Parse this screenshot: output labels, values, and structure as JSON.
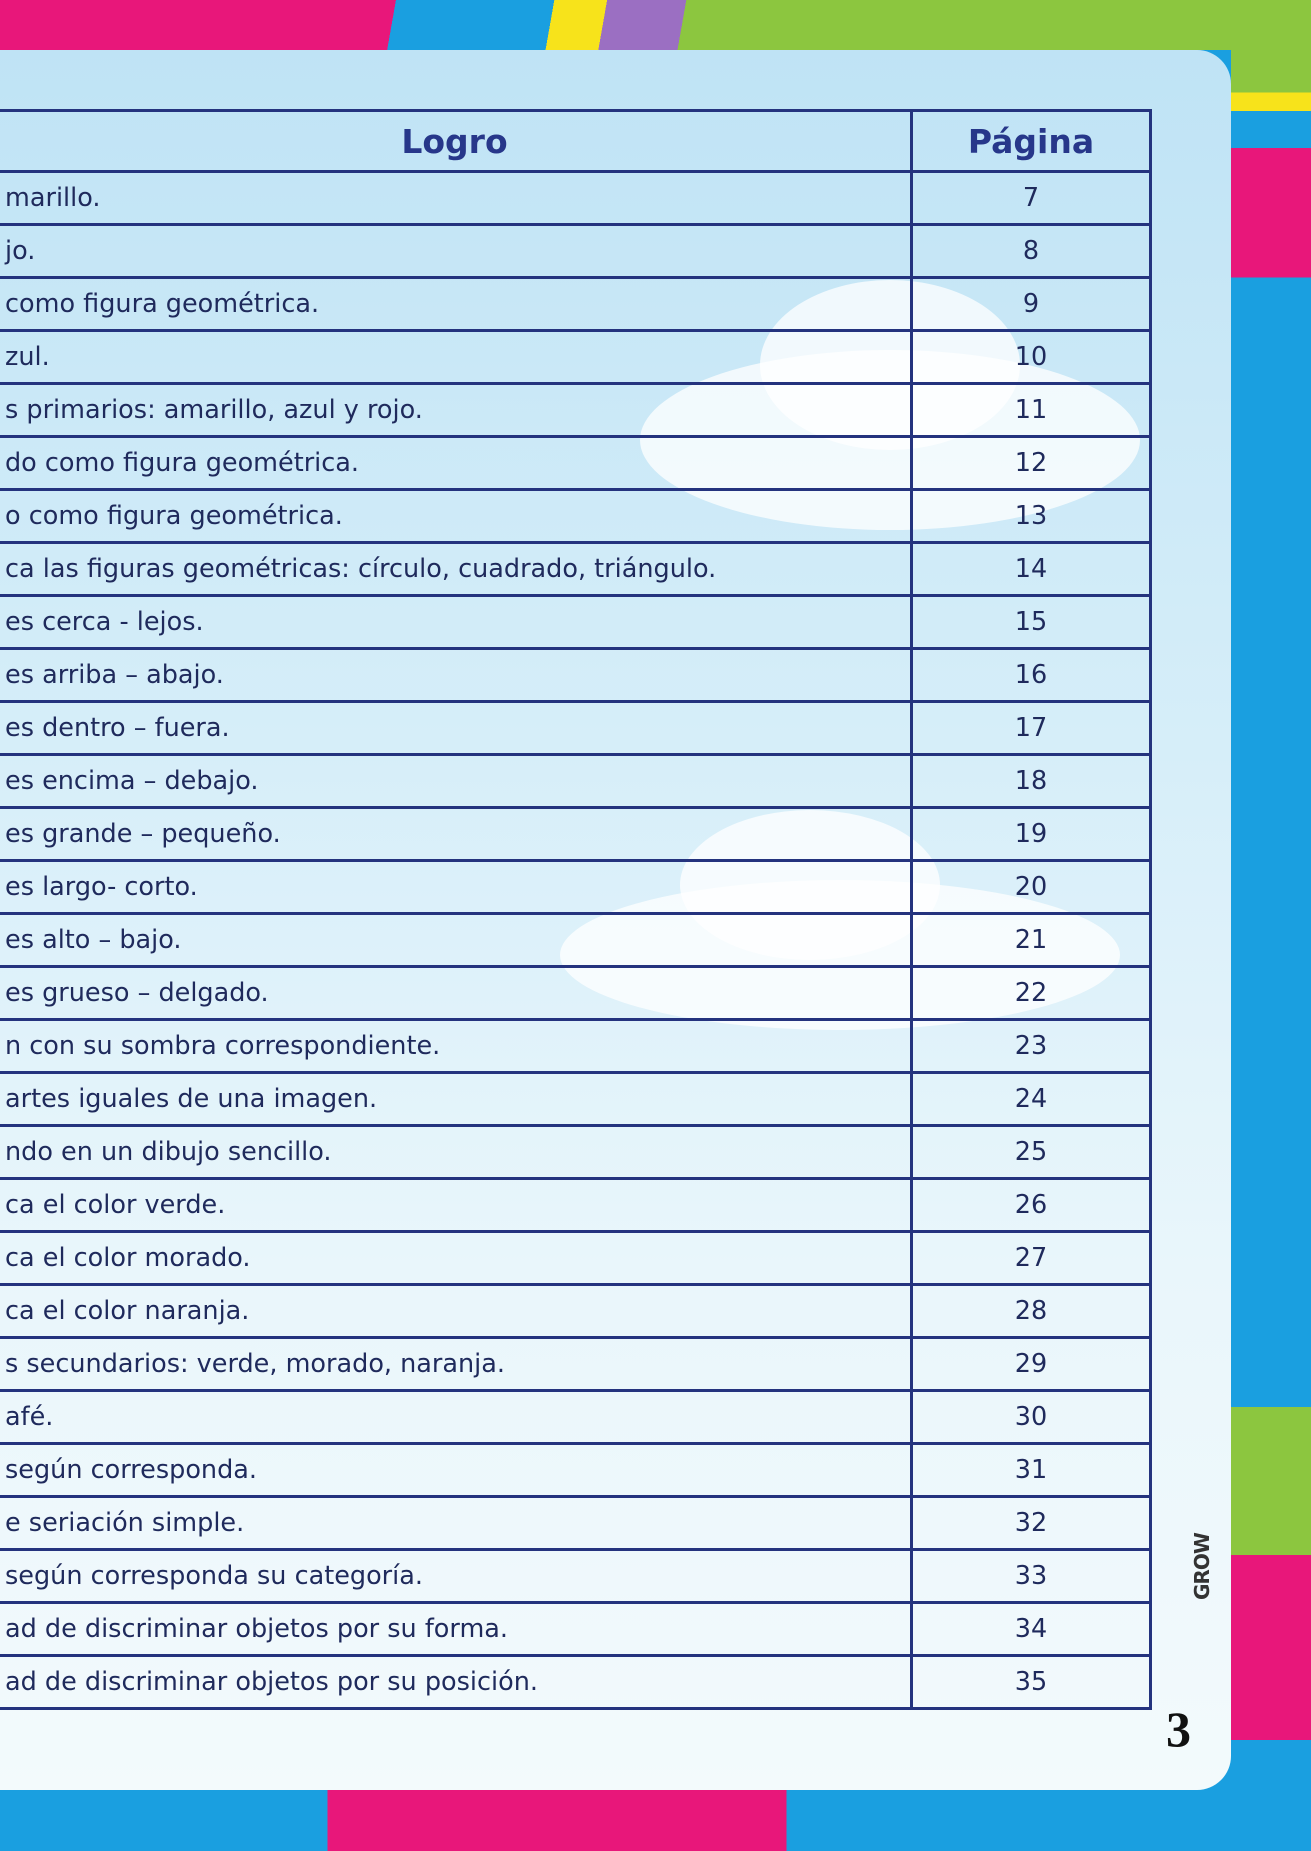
{
  "table": {
    "header": [
      "Logro",
      "Página"
    ],
    "rows": [
      [
        "marillo.",
        7
      ],
      [
        "jo.",
        8
      ],
      [
        "como figura geométrica.",
        9
      ],
      [
        "zul.",
        10
      ],
      [
        "s primarios: amarillo, azul y rojo.",
        11
      ],
      [
        "do como figura geométrica.",
        12
      ],
      [
        "o como figura geométrica.",
        13
      ],
      [
        "ca las figuras geométricas: círculo, cuadrado, triángulo.",
        14
      ],
      [
        "es cerca - lejos.",
        15
      ],
      [
        "es arriba – abajo.",
        16
      ],
      [
        "es dentro – fuera.",
        17
      ],
      [
        "es encima – debajo.",
        18
      ],
      [
        "es grande – pequeño.",
        19
      ],
      [
        "es largo- corto.",
        20
      ],
      [
        "es alto – bajo.",
        21
      ],
      [
        "es grueso – delgado.",
        22
      ],
      [
        "n con su sombra correspondiente.",
        23
      ],
      [
        "artes iguales de una imagen.",
        24
      ],
      [
        "ndo en un dibujo sencillo.",
        25
      ],
      [
        "ca el color verde.",
        26
      ],
      [
        "ca el color morado.",
        27
      ],
      [
        "ca el color naranja.",
        28
      ],
      [
        "s secundarios: verde, morado, naranja.",
        29
      ],
      [
        "afé.",
        30
      ],
      [
        "según corresponda.",
        31
      ],
      [
        "e seriación simple.",
        32
      ],
      [
        "según corresponda su categoría.",
        33
      ],
      [
        "ad de discriminar objetos por su forma.",
        34
      ],
      [
        "ad de discriminar objetos por su posición.",
        35
      ]
    ]
  },
  "page_number": 3,
  "logo": "GROW"
}
